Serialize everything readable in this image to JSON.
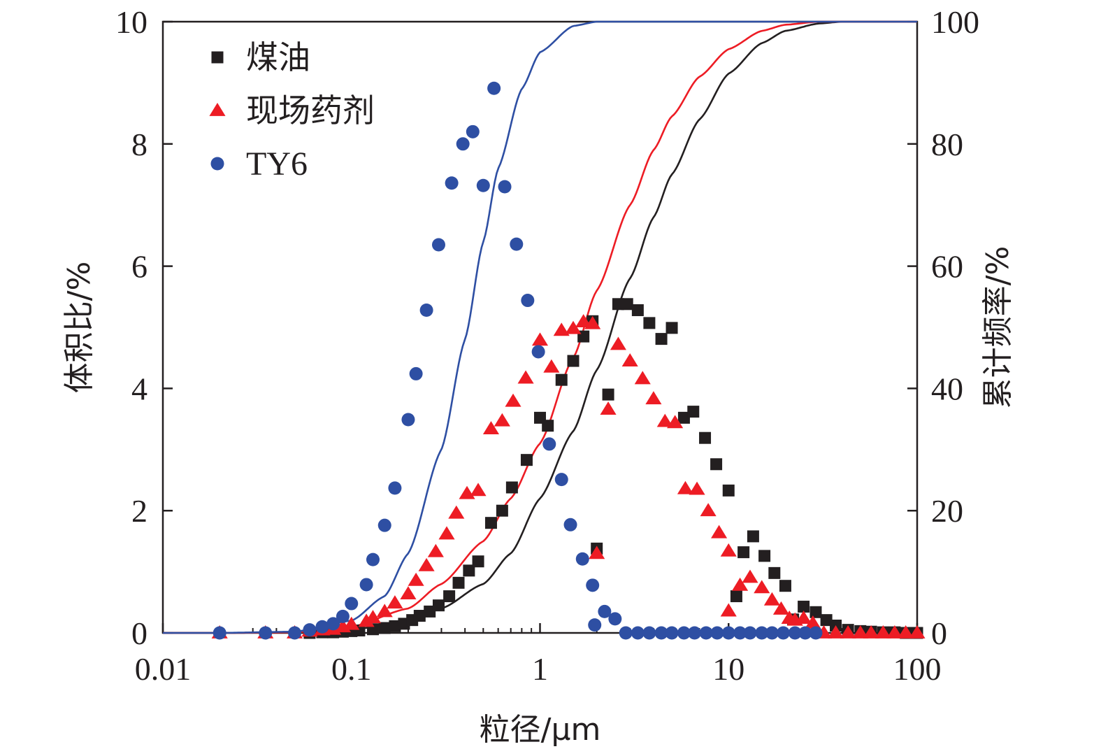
{
  "chart_data": {
    "type": "scatter",
    "xlabel": "粒径/μm",
    "ylabel_left": "体积比/%",
    "ylabel_right": "累计频率/%",
    "x_scale": "log",
    "xlim": [
      0.01,
      100
    ],
    "ylim_left": [
      0,
      10
    ],
    "ylim_right": [
      0,
      100
    ],
    "x_ticks": [
      {
        "value": 0.01,
        "label": "0.01"
      },
      {
        "value": 0.1,
        "label": "0.1"
      },
      {
        "value": 1,
        "label": "1"
      },
      {
        "value": 10,
        "label": "10"
      },
      {
        "value": 100,
        "label": "100"
      }
    ],
    "y_left_ticks": [
      {
        "value": 0,
        "label": "0"
      },
      {
        "value": 2,
        "label": "2"
      },
      {
        "value": 4,
        "label": "4"
      },
      {
        "value": 6,
        "label": "6"
      },
      {
        "value": 8,
        "label": "8"
      },
      {
        "value": 10,
        "label": "10"
      }
    ],
    "y_right_ticks": [
      {
        "value": 0,
        "label": "0"
      },
      {
        "value": 20,
        "label": "20"
      },
      {
        "value": 40,
        "label": "40"
      },
      {
        "value": 60,
        "label": "60"
      },
      {
        "value": 80,
        "label": "80"
      },
      {
        "value": 100,
        "label": "100"
      }
    ],
    "grid": false,
    "legend_position": "top-left",
    "series": [
      {
        "name": "煤油",
        "marker": "square",
        "color": "#231f20",
        "points": [
          [
            0.06,
            0.0
          ],
          [
            0.07,
            0.01
          ],
          [
            0.08,
            0.01
          ],
          [
            0.09,
            0.02
          ],
          [
            0.1,
            0.03
          ],
          [
            0.11,
            0.04
          ],
          [
            0.13,
            0.06
          ],
          [
            0.15,
            0.08
          ],
          [
            0.17,
            0.11
          ],
          [
            0.19,
            0.15
          ],
          [
            0.21,
            0.21
          ],
          [
            0.23,
            0.28
          ],
          [
            0.26,
            0.35
          ],
          [
            0.29,
            0.45
          ],
          [
            0.33,
            0.6
          ],
          [
            0.37,
            0.82
          ],
          [
            0.42,
            1.02
          ],
          [
            0.47,
            1.17
          ],
          [
            0.55,
            1.8
          ],
          [
            0.63,
            2.0
          ],
          [
            0.71,
            2.38
          ],
          [
            0.85,
            2.83
          ],
          [
            1.0,
            3.52
          ],
          [
            1.1,
            3.39
          ],
          [
            1.3,
            4.14
          ],
          [
            1.5,
            4.45
          ],
          [
            1.7,
            4.85
          ],
          [
            1.9,
            5.1
          ],
          [
            2.0,
            1.38
          ],
          [
            2.3,
            3.9
          ],
          [
            2.6,
            5.38
          ],
          [
            2.9,
            5.38
          ],
          [
            3.3,
            5.28
          ],
          [
            3.8,
            5.07
          ],
          [
            4.4,
            4.81
          ],
          [
            5.0,
            4.99
          ],
          [
            5.8,
            3.52
          ],
          [
            6.5,
            3.62
          ],
          [
            7.5,
            3.19
          ],
          [
            8.6,
            2.76
          ],
          [
            10.0,
            2.33
          ],
          [
            11.0,
            0.6
          ],
          [
            12.0,
            1.32
          ],
          [
            13.5,
            1.58
          ],
          [
            15.5,
            1.26
          ],
          [
            17.5,
            0.98
          ],
          [
            20.0,
            0.77
          ],
          [
            22.0,
            0.22
          ],
          [
            25.0,
            0.43
          ],
          [
            29.0,
            0.34
          ],
          [
            33.0,
            0.21
          ],
          [
            37.0,
            0.12
          ],
          [
            43.0,
            0.05
          ],
          [
            50.0,
            0.03
          ],
          [
            57.0,
            0.02
          ],
          [
            66.0,
            0.01
          ],
          [
            76.0,
            0.01
          ],
          [
            87.0,
            0.0
          ],
          [
            100.0,
            0.0
          ]
        ],
        "cumulative": [
          [
            0.02,
            0.0
          ],
          [
            0.05,
            0.1
          ],
          [
            0.1,
            0.5
          ],
          [
            0.2,
            2.0
          ],
          [
            0.3,
            4.0
          ],
          [
            0.5,
            8.0
          ],
          [
            0.7,
            13.0
          ],
          [
            1.0,
            22.0
          ],
          [
            1.5,
            33.0
          ],
          [
            2.0,
            43.0
          ],
          [
            3.0,
            58.0
          ],
          [
            4.0,
            68.0
          ],
          [
            5.0,
            75.0
          ],
          [
            7.0,
            84.0
          ],
          [
            10.0,
            91.5
          ],
          [
            15.0,
            96.5
          ],
          [
            20.0,
            98.5
          ],
          [
            30.0,
            99.7
          ],
          [
            40.0,
            100.0
          ],
          [
            100.0,
            100.0
          ]
        ]
      },
      {
        "name": "现场药剂",
        "marker": "triangle",
        "color": "#ed1c24",
        "points": [
          [
            0.02,
            0.0
          ],
          [
            0.035,
            0.0
          ],
          [
            0.05,
            0.0
          ],
          [
            0.06,
            0.03
          ],
          [
            0.07,
            0.05
          ],
          [
            0.08,
            0.06
          ],
          [
            0.09,
            0.1
          ],
          [
            0.1,
            0.14
          ],
          [
            0.12,
            0.19
          ],
          [
            0.13,
            0.25
          ],
          [
            0.15,
            0.35
          ],
          [
            0.17,
            0.49
          ],
          [
            0.2,
            0.64
          ],
          [
            0.22,
            0.86
          ],
          [
            0.25,
            1.1
          ],
          [
            0.28,
            1.33
          ],
          [
            0.32,
            1.62
          ],
          [
            0.36,
            1.96
          ],
          [
            0.41,
            2.28
          ],
          [
            0.47,
            2.33
          ],
          [
            0.55,
            3.34
          ],
          [
            0.63,
            3.47
          ],
          [
            0.72,
            3.79
          ],
          [
            0.84,
            4.17
          ],
          [
            1.0,
            4.79
          ],
          [
            1.15,
            4.35
          ],
          [
            1.3,
            4.95
          ],
          [
            1.5,
            4.98
          ],
          [
            1.7,
            5.09
          ],
          [
            1.9,
            5.06
          ],
          [
            2.0,
            1.3
          ],
          [
            2.3,
            3.66
          ],
          [
            2.6,
            4.72
          ],
          [
            3.0,
            4.45
          ],
          [
            3.5,
            4.16
          ],
          [
            4.0,
            3.83
          ],
          [
            4.6,
            3.46
          ],
          [
            5.2,
            3.44
          ],
          [
            5.9,
            2.36
          ],
          [
            6.8,
            2.35
          ],
          [
            7.8,
            2.0
          ],
          [
            8.9,
            1.64
          ],
          [
            10.0,
            1.34
          ],
          [
            10.0,
            0.36
          ],
          [
            11.5,
            0.78
          ],
          [
            13.0,
            0.91
          ],
          [
            15.0,
            0.74
          ],
          [
            17.0,
            0.54
          ],
          [
            19.0,
            0.39
          ],
          [
            21.0,
            0.24
          ],
          [
            22.5,
            0.21
          ],
          [
            25.0,
            0.24
          ],
          [
            28.0,
            0.16
          ],
          [
            32.0,
            0.0
          ],
          [
            37.0,
            0.0
          ],
          [
            43.0,
            0.0
          ],
          [
            50.0,
            0.0
          ],
          [
            57.0,
            0.0
          ],
          [
            66.0,
            0.0
          ],
          [
            76.0,
            0.0
          ],
          [
            87.0,
            0.0
          ],
          [
            100.0,
            0.0
          ]
        ],
        "cumulative": [
          [
            0.02,
            0.0
          ],
          [
            0.05,
            0.1
          ],
          [
            0.1,
            1.0
          ],
          [
            0.2,
            4.0
          ],
          [
            0.3,
            8.0
          ],
          [
            0.5,
            15.0
          ],
          [
            0.7,
            22.0
          ],
          [
            1.0,
            31.0
          ],
          [
            1.5,
            45.0
          ],
          [
            2.0,
            56.0
          ],
          [
            3.0,
            70.0
          ],
          [
            4.0,
            79.0
          ],
          [
            5.0,
            84.5
          ],
          [
            7.0,
            91.0
          ],
          [
            10.0,
            95.5
          ],
          [
            15.0,
            98.5
          ],
          [
            20.0,
            99.5
          ],
          [
            30.0,
            100.0
          ],
          [
            100.0,
            100.0
          ]
        ]
      },
      {
        "name": "TY6",
        "marker": "circle",
        "color": "#2e4fa3",
        "points": [
          [
            0.02,
            0.0
          ],
          [
            0.035,
            0.0
          ],
          [
            0.05,
            0.0
          ],
          [
            0.06,
            0.05
          ],
          [
            0.07,
            0.1
          ],
          [
            0.08,
            0.15
          ],
          [
            0.09,
            0.27
          ],
          [
            0.1,
            0.48
          ],
          [
            0.12,
            0.79
          ],
          [
            0.13,
            1.2
          ],
          [
            0.15,
            1.76
          ],
          [
            0.17,
            2.37
          ],
          [
            0.2,
            3.49
          ],
          [
            0.22,
            4.24
          ],
          [
            0.25,
            5.28
          ],
          [
            0.29,
            6.35
          ],
          [
            0.34,
            7.36
          ],
          [
            0.39,
            8.0
          ],
          [
            0.44,
            8.2
          ],
          [
            0.5,
            7.32
          ],
          [
            0.57,
            8.91
          ],
          [
            0.65,
            7.3
          ],
          [
            0.75,
            6.36
          ],
          [
            0.86,
            5.44
          ],
          [
            0.98,
            4.6
          ],
          [
            1.12,
            3.09
          ],
          [
            1.3,
            2.51
          ],
          [
            1.45,
            1.77
          ],
          [
            1.68,
            1.21
          ],
          [
            1.9,
            0.78
          ],
          [
            1.95,
            0.13
          ],
          [
            2.2,
            0.35
          ],
          [
            2.5,
            0.23
          ],
          [
            2.85,
            0.0
          ],
          [
            3.3,
            0.0
          ],
          [
            3.8,
            0.0
          ],
          [
            4.4,
            0.0
          ],
          [
            5.0,
            0.0
          ],
          [
            5.8,
            0.0
          ],
          [
            6.6,
            0.0
          ],
          [
            7.6,
            0.0
          ],
          [
            8.7,
            0.0
          ],
          [
            10.0,
            0.0
          ],
          [
            11.5,
            0.0
          ],
          [
            13.0,
            0.0
          ],
          [
            15.0,
            0.0
          ],
          [
            17.0,
            0.0
          ],
          [
            19.5,
            0.0
          ],
          [
            22.5,
            0.0
          ],
          [
            25.5,
            0.0
          ],
          [
            29.0,
            0.0
          ]
        ],
        "cumulative": [
          [
            0.02,
            0.0
          ],
          [
            0.05,
            0.2
          ],
          [
            0.1,
            2.0
          ],
          [
            0.15,
            6.0
          ],
          [
            0.2,
            13.0
          ],
          [
            0.3,
            30.0
          ],
          [
            0.4,
            48.0
          ],
          [
            0.5,
            64.0
          ],
          [
            0.6,
            76.0
          ],
          [
            0.8,
            89.0
          ],
          [
            1.0,
            95.0
          ],
          [
            1.5,
            99.3
          ],
          [
            2.0,
            100.0
          ],
          [
            100.0,
            100.0
          ]
        ]
      }
    ]
  }
}
